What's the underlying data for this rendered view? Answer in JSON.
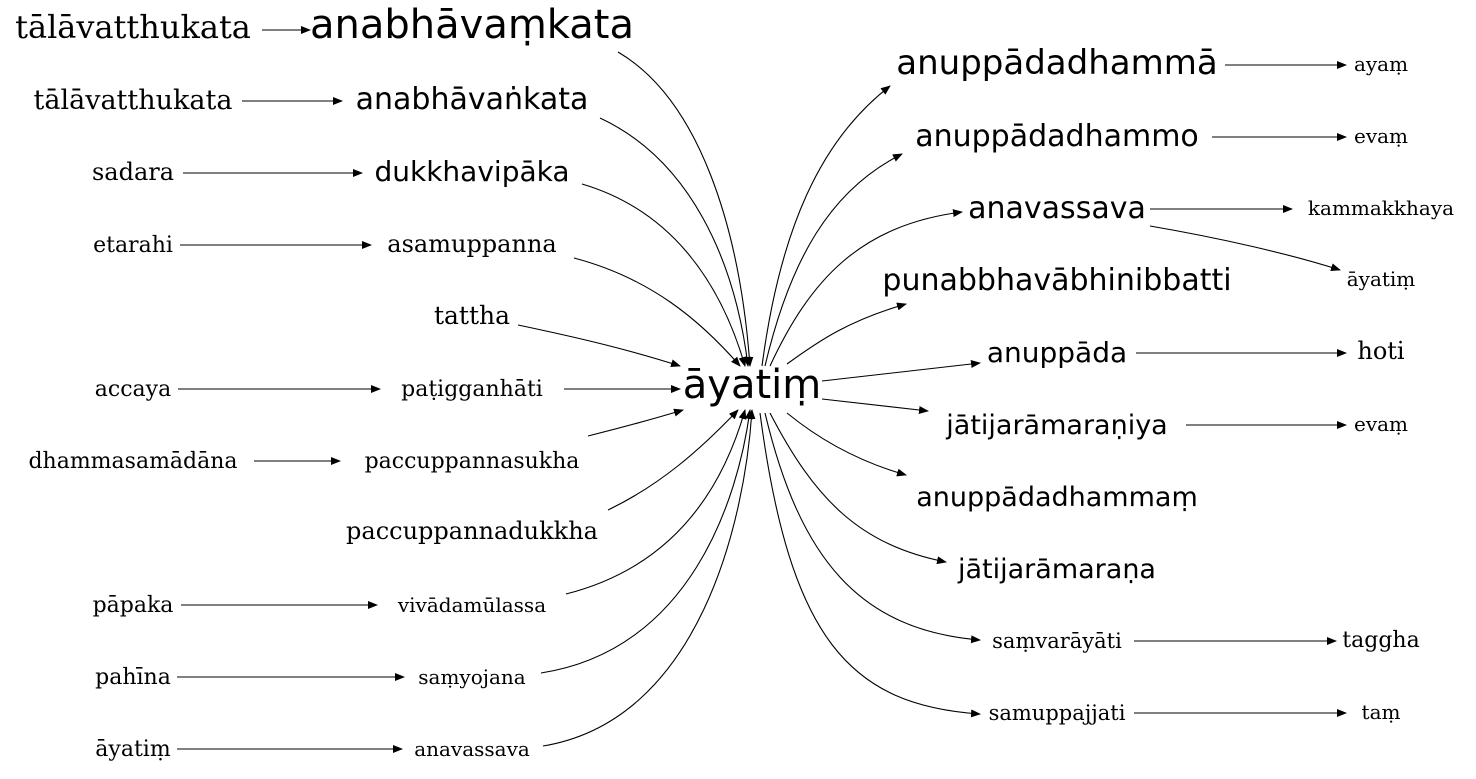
{
  "center": "āyatiṃ",
  "left": [
    {
      "source": "tālāvatthukata",
      "target": "anabhāvaṃkata"
    },
    {
      "source": "tālāvatthukata",
      "target": "anabhāvaṅkata"
    },
    {
      "source": "sadara",
      "target": "dukkhavipāka"
    },
    {
      "source": "etarahi",
      "target": "asamuppanna"
    },
    {
      "source": "",
      "target": "tattha"
    },
    {
      "source": "accaya",
      "target": "paṭigganhāti"
    },
    {
      "source": "dhammasamādāna",
      "target": "paccuppannasukha"
    },
    {
      "source": "",
      "target": "paccuppannadukkha"
    },
    {
      "source": "pāpaka",
      "target": "vivādamūlassa"
    },
    {
      "source": "pahīna",
      "target": "saṃyojana"
    },
    {
      "source": "āyatiṃ",
      "target": "anavassava"
    }
  ],
  "right": [
    {
      "word": "anuppādadhammā",
      "next": [
        "ayaṃ"
      ]
    },
    {
      "word": "anuppādadhammo",
      "next": [
        "evaṃ"
      ]
    },
    {
      "word": "anavassava",
      "next": [
        "kammakkhaya",
        "āyatiṃ"
      ]
    },
    {
      "word": "punabbhavābhinibbatti",
      "next": []
    },
    {
      "word": "anuppāda",
      "next": [
        "hoti"
      ]
    },
    {
      "word": "jātijarāmaraṇiya",
      "next": [
        "evaṃ"
      ]
    },
    {
      "word": "anuppādadhammaṃ",
      "next": []
    },
    {
      "word": "jātijarāmaraṇa",
      "next": []
    },
    {
      "word": "saṃvarāyāti",
      "next": [
        "taggha"
      ]
    },
    {
      "word": "samuppajjati",
      "next": [
        "taṃ"
      ]
    }
  ]
}
